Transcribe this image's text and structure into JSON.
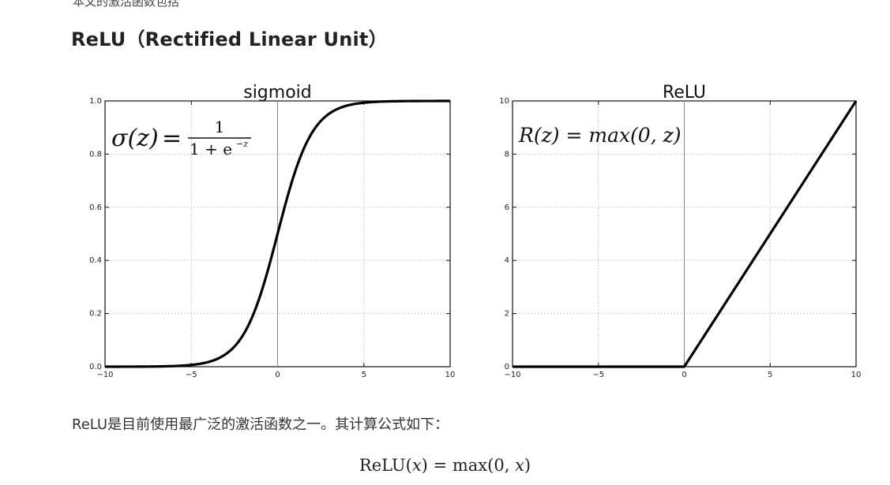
{
  "page": {
    "top_cut_text": "本文的激活函数包括",
    "heading": "ReLU（Rectified Linear Unit）",
    "paragraph": "ReLU是目前使用最广泛的激活函数之一。其计算公式如下：",
    "formula": {
      "lhs_func": "ReLU",
      "lhs_var": "x",
      "equals": "=",
      "rhs_func": "max",
      "rhs_arg0": "0",
      "rhs_var": "x"
    }
  },
  "chart_data": [
    {
      "type": "line",
      "title": "sigmoid",
      "annotation": {
        "lhs": "σ(z)",
        "eq": "=",
        "numerator": "1",
        "denominator": "1 + e",
        "exponent": "−z"
      },
      "x_range": [
        -10,
        10
      ],
      "ylim": [
        0.0,
        1.0
      ],
      "x_ticks": [
        -10,
        -5,
        0,
        5,
        10
      ],
      "x_tick_labels": [
        "−10",
        "−5",
        "0",
        "5",
        "10"
      ],
      "y_ticks": [
        0.0,
        0.2,
        0.4,
        0.6,
        0.8,
        1.0
      ],
      "y_tick_labels": [
        "0.0",
        "0.2",
        "0.4",
        "0.6",
        "0.8",
        "1.0"
      ],
      "grid": true,
      "function": "sigmoid",
      "line_color": "#000000"
    },
    {
      "type": "line",
      "title": "ReLU",
      "annotation": {
        "text": "R(z) = max(0,  z)"
      },
      "x_range": [
        -10,
        10
      ],
      "ylim": [
        0,
        10
      ],
      "x_ticks": [
        -10,
        -5,
        0,
        5,
        10
      ],
      "x_tick_labels": [
        "−10",
        "−5",
        "0",
        "5",
        "10"
      ],
      "y_ticks": [
        0,
        2,
        4,
        6,
        8,
        10
      ],
      "y_tick_labels": [
        "0",
        "2",
        "4",
        "6",
        "8",
        "10"
      ],
      "grid": true,
      "points": [
        [
          -10,
          0
        ],
        [
          0,
          0
        ],
        [
          10,
          10
        ]
      ],
      "line_color": "#000000"
    }
  ]
}
